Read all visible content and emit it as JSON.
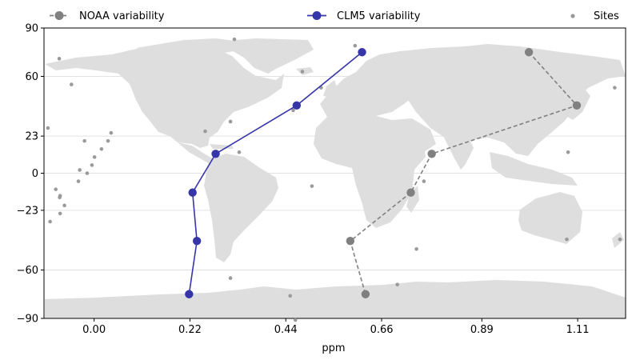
{
  "chart_data": {
    "type": "line",
    "title": "",
    "xlabel": "ppm",
    "ylabel": "",
    "xlim": [
      -0.115,
      1.22
    ],
    "ylim": [
      -90,
      90
    ],
    "xticks": [
      0.0,
      0.22,
      0.44,
      0.66,
      0.89,
      1.11
    ],
    "xtick_labels": [
      "0.00",
      "0.22",
      "0.44",
      "0.66",
      "0.89",
      "1.11"
    ],
    "yticks": [
      -90,
      -60,
      -23,
      0,
      23,
      60,
      90
    ],
    "ytick_labels": [
      "−90",
      "−60",
      "−23",
      "0",
      "23",
      "60",
      "90"
    ],
    "grid": true,
    "legend_placement": "top",
    "background": "world-map-land-silhouette",
    "series": [
      {
        "name": "NOAA variability",
        "color": "#808080",
        "linestyle": "dashed",
        "marker": "circle",
        "x": [
          0.998,
          1.108,
          0.775,
          0.727,
          0.588,
          0.623
        ],
        "y": [
          75,
          42,
          12,
          -12,
          -42,
          -75
        ]
      },
      {
        "name": "CLM5 variability",
        "color": "#3636a8",
        "linestyle": "solid",
        "marker": "circle",
        "x": [
          0.615,
          0.465,
          0.279,
          0.226,
          0.236,
          0.218
        ],
        "y": [
          75,
          42,
          12,
          -12,
          -42,
          -75
        ]
      },
      {
        "name": "Sites",
        "color": "#9a9a9a",
        "linestyle": "none",
        "marker": "small-circle",
        "x": [
          0.322,
          -0.08,
          -0.052,
          0.599,
          0.478,
          0.521,
          0.457,
          1.195,
          -0.106,
          0.313,
          0.255,
          0.039,
          -0.022,
          0.032,
          0.017,
          0.001,
          -0.005,
          0.333,
          -0.033,
          -0.016,
          -0.036,
          -0.078,
          -0.079,
          -0.068,
          -0.088,
          -0.078,
          -0.101,
          0.5,
          0.757,
          1.088,
          0.74,
          1.085,
          1.207,
          1.223,
          0.313,
          0.45,
          0.462,
          0.696
        ],
        "y": [
          83,
          71,
          55,
          79,
          63,
          53,
          39,
          53,
          28,
          32,
          26,
          25,
          20,
          20,
          15,
          10,
          5,
          13,
          2,
          0,
          -5,
          -14,
          -15,
          -20,
          -10,
          -25,
          -30,
          -8,
          -5,
          13,
          -47,
          -41,
          -41,
          -35,
          -65,
          -76,
          -91,
          -69
        ]
      }
    ]
  }
}
